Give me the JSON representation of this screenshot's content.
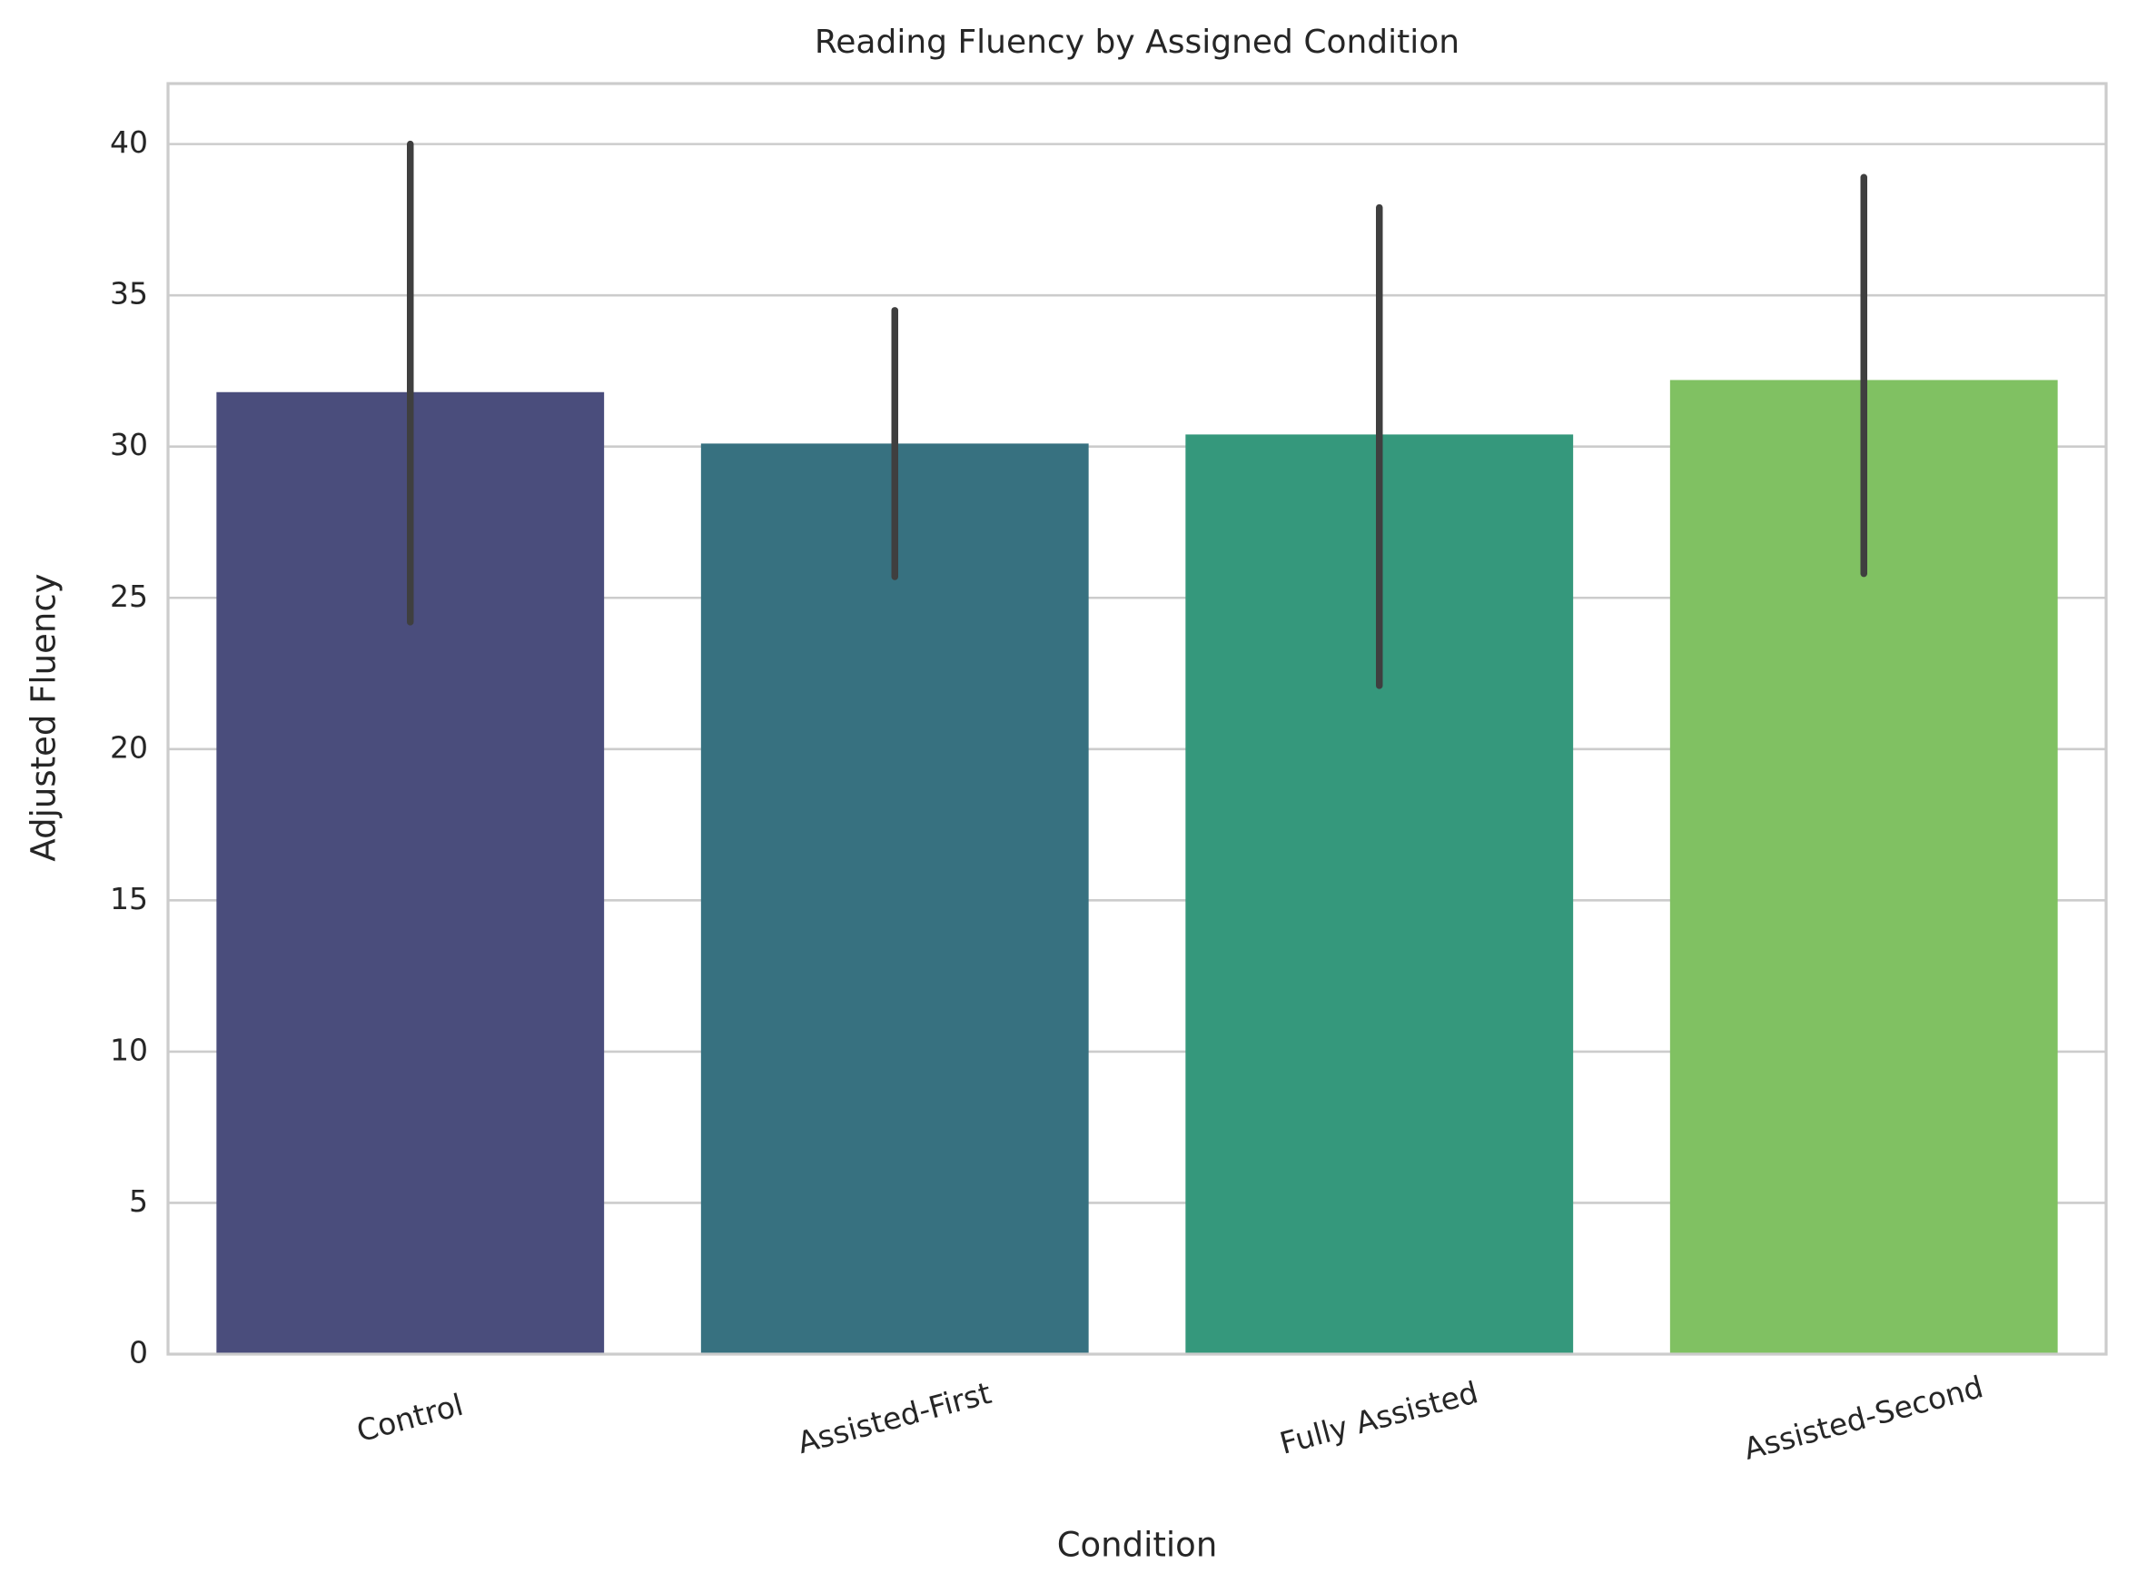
{
  "chart_data": {
    "type": "bar",
    "title": "Reading Fluency by Assigned Condition",
    "xlabel": "Condition",
    "ylabel": "Adjusted Fluency",
    "categories": [
      "Control",
      "Assisted-First",
      "Fully Assisted",
      "Assisted-Second"
    ],
    "values": [
      31.8,
      30.1,
      30.4,
      32.2
    ],
    "error_bars": [
      {
        "low": 24.2,
        "high": 40.0
      },
      {
        "low": 25.7,
        "high": 34.5
      },
      {
        "low": 22.1,
        "high": 37.9
      },
      {
        "low": 25.8,
        "high": 38.9
      }
    ],
    "colors": [
      "#4a4d7c",
      "#377180",
      "#35987c",
      "#80c162"
    ],
    "error_bar_color": "#3f3f3f",
    "ylim": [
      0,
      42
    ],
    "yticks": [
      0,
      5,
      10,
      15,
      20,
      25,
      30,
      35,
      40
    ],
    "x_tick_rotation_deg": 15,
    "grid": "horizontal"
  }
}
